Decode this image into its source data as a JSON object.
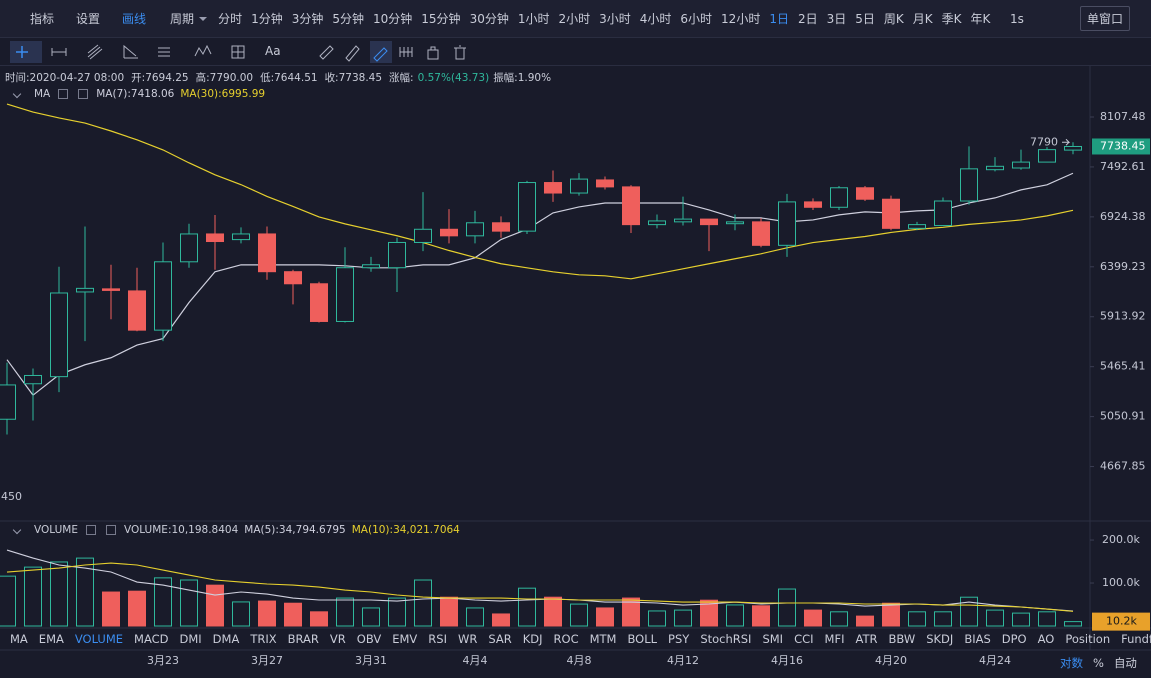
{
  "toolbar": {
    "tools": [
      "指标",
      "设置",
      "画线"
    ],
    "active_tool": "画线",
    "period_label": "周期",
    "periods": [
      "分时",
      "1分钟",
      "3分钟",
      "5分钟",
      "10分钟",
      "15分钟",
      "30分钟",
      "1小时",
      "2小时",
      "3小时",
      "4小时",
      "6小时",
      "12小时",
      "1日",
      "2日",
      "3日",
      "5日",
      "周K",
      "月K",
      "季K",
      "年K"
    ],
    "selected_period": "1日",
    "speed": "1s",
    "window": "单窗口"
  },
  "drawing_toolbar": {
    "text_tool": "Aa"
  },
  "info": {
    "time": "时间:2020-04-27 08:00",
    "open": "开:7694.25",
    "high": "高:7790.00",
    "low": "低:7644.51",
    "close": "收:7738.45",
    "change_label": "涨幅:",
    "change": "0.57%(43.73)",
    "amplitude": "振幅:1.90%"
  },
  "chart_data": [
    {
      "type": "candlestick",
      "indicator": "MA",
      "log": true,
      "ylim": [
        4290,
        8394
      ],
      "yticks": [
        8107.48,
        7492.61,
        6924.38,
        6399.23,
        5913.92,
        5465.41,
        5050.91,
        4667.85
      ],
      "corner_label": "450",
      "up_color": "#2fb89c",
      "down_color": "#ef5f5c",
      "open": [
        5030,
        5320,
        5380,
        6150,
        6180,
        6160,
        5790,
        6450,
        6740,
        6680,
        6740,
        6350,
        6230,
        5870,
        6390,
        6390,
        6650,
        6790,
        6720,
        6860,
        6770,
        7310,
        7190,
        7340,
        7260,
        6840,
        6870,
        6900,
        6850,
        6870,
        6620,
        7090,
        7030,
        7250,
        7120,
        6800,
        6830,
        7100,
        7460,
        7480,
        7550,
        7694.25
      ],
      "high": [
        5500,
        5450,
        6400,
        6820,
        6420,
        6390,
        6650,
        6850,
        6945,
        6810,
        6820,
        6370,
        6250,
        6600,
        6500,
        6700,
        7200,
        7010,
        6990,
        6930,
        7330,
        7450,
        7420,
        7380,
        7280,
        6950,
        7150,
        6900,
        6950,
        6910,
        7180,
        7130,
        7270,
        7270,
        7160,
        6870,
        7140,
        7740,
        7610,
        7700,
        7730,
        7790
      ],
      "low": [
        4910,
        5020,
        5250,
        5690,
        5890,
        5780,
        5690,
        6390,
        6370,
        6640,
        6270,
        6030,
        5860,
        5860,
        6350,
        6150,
        6560,
        6640,
        6640,
        6700,
        6740,
        7090,
        7160,
        7230,
        6750,
        6800,
        6830,
        6560,
        6780,
        6600,
        6500,
        7000,
        7000,
        7100,
        6780,
        6780,
        6830,
        7060,
        7440,
        7460,
        7550,
        7644.51
      ],
      "close": [
        5310,
        5390,
        6140,
        6185,
        6165,
        5790,
        6450,
        6740,
        6660,
        6740,
        6350,
        6230,
        5870,
        6390,
        6420,
        6650,
        6790,
        6720,
        6860,
        6770,
        7310,
        7190,
        7350,
        7260,
        6840,
        6880,
        6900,
        6840,
        6870,
        6620,
        7090,
        7030,
        7250,
        7120,
        6800,
        6840,
        7100,
        7470,
        7500,
        7550,
        7700,
        7738.45
      ],
      "series": [
        {
          "name": "MA(7):7418.06",
          "color": "#cfd0de",
          "values": [
            5526,
            5225,
            5396,
            5482,
            5543,
            5655,
            5713,
            6048,
            6349,
            6419,
            6419,
            6419,
            6419,
            6409,
            6389,
            6389,
            6419,
            6419,
            6491,
            6681,
            6789,
            6968,
            7034,
            7078,
            7078,
            7078,
            7078,
            7001,
            6913,
            6913,
            6870,
            6891,
            6946,
            6979,
            6968,
            6990,
            7001,
            7078,
            7135,
            7226,
            7284,
            7418.06
          ]
        },
        {
          "name": "MA(30):6995.99",
          "color": "#e6d02e",
          "values": [
            8275,
            8171,
            8095,
            8030,
            7930,
            7820,
            7697,
            7541,
            7400,
            7286,
            7152,
            7040,
            6924,
            6848,
            6784,
            6721,
            6649,
            6566,
            6495,
            6430,
            6389,
            6349,
            6319,
            6309,
            6279,
            6329,
            6379,
            6430,
            6481,
            6532,
            6594,
            6649,
            6681,
            6713,
            6756,
            6789,
            6811,
            6843,
            6865,
            6891,
            6935,
            6995.99
          ]
        }
      ]
    },
    {
      "type": "volume",
      "indicator": "VOLUME",
      "ylim": [
        0,
        235000
      ],
      "yticks": [
        {
          "value": 200000,
          "label": "200.0k"
        },
        {
          "value": 100000,
          "label": "100.0k"
        }
      ],
      "categories": [
        null,
        null,
        null,
        null,
        null,
        null,
        "3月23",
        null,
        null,
        null,
        "3月27",
        null,
        null,
        null,
        "3月31",
        null,
        null,
        null,
        "4月4",
        null,
        null,
        null,
        "4月8",
        null,
        null,
        null,
        "4月12",
        null,
        null,
        null,
        "4月16",
        null,
        null,
        null,
        "4月20",
        null,
        null,
        null,
        "4月24",
        null,
        null,
        null
      ],
      "name": "VOLUME:10,198.8404",
      "last_value_label": "10.2k",
      "badge_color": "#e8a12a",
      "values": [
        116000,
        137000,
        149000,
        158000,
        79000,
        81000,
        112000,
        107000,
        95000,
        56000,
        58000,
        53000,
        33000,
        65000,
        42000,
        65000,
        107000,
        67000,
        42000,
        28000,
        88000,
        67000,
        51000,
        42000,
        65000,
        35000,
        37000,
        60000,
        49000,
        47000,
        86000,
        37000,
        33000,
        23000,
        53000,
        33000,
        33000,
        67000,
        37000,
        30000,
        33000,
        10198.8404
      ],
      "series": [
        {
          "name": "MA(5):34,794.6795",
          "color": "#cfd0de",
          "values": [
            176700,
            158100,
            141900,
            134900,
            125600,
            102300,
            95300,
            83700,
            72100,
            79100,
            74400,
            65100,
            60500,
            60500,
            60500,
            58100,
            62800,
            65100,
            60500,
            58100,
            60500,
            62800,
            60500,
            55800,
            55800,
            53500,
            48800,
            51200,
            55800,
            51200,
            53500,
            53500,
            51200,
            46500,
            48800,
            51200,
            48800,
            55800,
            48800,
            44200,
            39500,
            34794.6795
          ]
        },
        {
          "name": "MA(10):34,021.7064",
          "color": "#e6d02e",
          "values": [
            125600,
            130200,
            134900,
            141900,
            146500,
            141900,
            130200,
            118600,
            107000,
            102300,
            97700,
            95300,
            90700,
            83700,
            79100,
            72100,
            67400,
            65100,
            65100,
            65100,
            62800,
            62800,
            60500,
            60500,
            60500,
            58100,
            55800,
            55800,
            55800,
            53500,
            53500,
            53500,
            53500,
            51200,
            51200,
            51200,
            48800,
            48800,
            46500,
            44200,
            39500,
            34021.7064
          ]
        }
      ]
    }
  ],
  "indicators": {
    "items": [
      "MA",
      "EMA",
      "VOLUME",
      "MACD",
      "DMI",
      "DMA",
      "TRIX",
      "BRAR",
      "VR",
      "OBV",
      "EMV",
      "RSI",
      "WR",
      "SAR",
      "KDJ",
      "ROC",
      "MTM",
      "BOLL",
      "PSY",
      "StochRSI",
      "SMI",
      "CCI",
      "MFI",
      "ATR",
      "BBW",
      "SKDJ",
      "BIAS",
      "DPO",
      "AO",
      "Position",
      "Fundflow"
    ],
    "selected": "VOLUME"
  },
  "axis_options": [
    "对数",
    "%",
    "自动"
  ]
}
